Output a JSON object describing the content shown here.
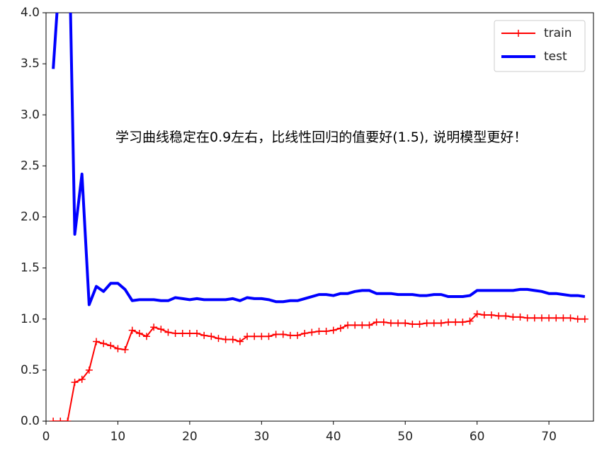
{
  "chart_data": {
    "type": "line",
    "x": [
      1,
      2,
      3,
      4,
      5,
      6,
      7,
      8,
      9,
      10,
      11,
      12,
      13,
      14,
      15,
      16,
      17,
      18,
      19,
      20,
      21,
      22,
      23,
      24,
      25,
      26,
      27,
      28,
      29,
      30,
      31,
      32,
      33,
      34,
      35,
      36,
      37,
      38,
      39,
      40,
      41,
      42,
      43,
      44,
      45,
      46,
      47,
      48,
      49,
      50,
      51,
      52,
      53,
      54,
      55,
      56,
      57,
      58,
      59,
      60,
      61,
      62,
      63,
      64,
      65,
      66,
      67,
      68,
      69,
      70,
      71,
      72,
      73,
      74,
      75
    ],
    "series": [
      {
        "name": "train",
        "color": "#ff0000",
        "marker": "+",
        "linewidth": 2,
        "values": [
          0,
          0,
          0,
          0.38,
          0.41,
          0.5,
          0.78,
          0.76,
          0.74,
          0.71,
          0.7,
          0.89,
          0.86,
          0.83,
          0.92,
          0.9,
          0.87,
          0.86,
          0.86,
          0.86,
          0.86,
          0.84,
          0.83,
          0.81,
          0.8,
          0.8,
          0.78,
          0.83,
          0.83,
          0.83,
          0.83,
          0.85,
          0.85,
          0.84,
          0.84,
          0.86,
          0.87,
          0.88,
          0.88,
          0.89,
          0.91,
          0.94,
          0.94,
          0.94,
          0.94,
          0.97,
          0.97,
          0.96,
          0.96,
          0.96,
          0.95,
          0.95,
          0.96,
          0.96,
          0.96,
          0.97,
          0.97,
          0.97,
          0.98,
          1.05,
          1.04,
          1.04,
          1.03,
          1.03,
          1.02,
          1.02,
          1.01,
          1.01,
          1.01,
          1.01,
          1.01,
          1.01,
          1.01,
          1.0,
          1.0
        ]
      },
      {
        "name": "test",
        "color": "#0000ff",
        "linewidth": 4,
        "values": [
          3.45,
          4.5,
          5.5,
          1.83,
          2.42,
          1.14,
          1.32,
          1.27,
          1.35,
          1.35,
          1.29,
          1.18,
          1.19,
          1.19,
          1.19,
          1.18,
          1.18,
          1.21,
          1.2,
          1.19,
          1.2,
          1.19,
          1.19,
          1.19,
          1.19,
          1.2,
          1.18,
          1.21,
          1.2,
          1.2,
          1.19,
          1.17,
          1.17,
          1.18,
          1.18,
          1.2,
          1.22,
          1.24,
          1.24,
          1.23,
          1.25,
          1.25,
          1.27,
          1.28,
          1.28,
          1.25,
          1.25,
          1.25,
          1.24,
          1.24,
          1.24,
          1.23,
          1.23,
          1.24,
          1.24,
          1.22,
          1.22,
          1.22,
          1.23,
          1.28,
          1.28,
          1.28,
          1.28,
          1.28,
          1.28,
          1.29,
          1.29,
          1.28,
          1.27,
          1.25,
          1.25,
          1.24,
          1.23,
          1.23,
          1.22
        ]
      }
    ],
    "xlim": [
      0,
      76.2
    ],
    "ylim": [
      0,
      4
    ],
    "xticks": [
      0,
      10,
      20,
      30,
      40,
      50,
      60,
      70
    ],
    "yticks": [
      {
        "value": 0,
        "label": "0.0"
      },
      {
        "value": 0.5,
        "label": "0.5"
      },
      {
        "value": 1,
        "label": "1.0"
      },
      {
        "value": 1.5,
        "label": "1.5"
      },
      {
        "value": 2,
        "label": "2.0"
      },
      {
        "value": 2.5,
        "label": "2.5"
      },
      {
        "value": 3,
        "label": "3.0"
      },
      {
        "value": 3.5,
        "label": "3.5"
      },
      {
        "value": 4,
        "label": "4.0"
      }
    ],
    "legend": "upper right",
    "annotation": "学习曲线稳定在0.9左右，比线性回归的值要好(1.5), 说明模型更好！"
  }
}
